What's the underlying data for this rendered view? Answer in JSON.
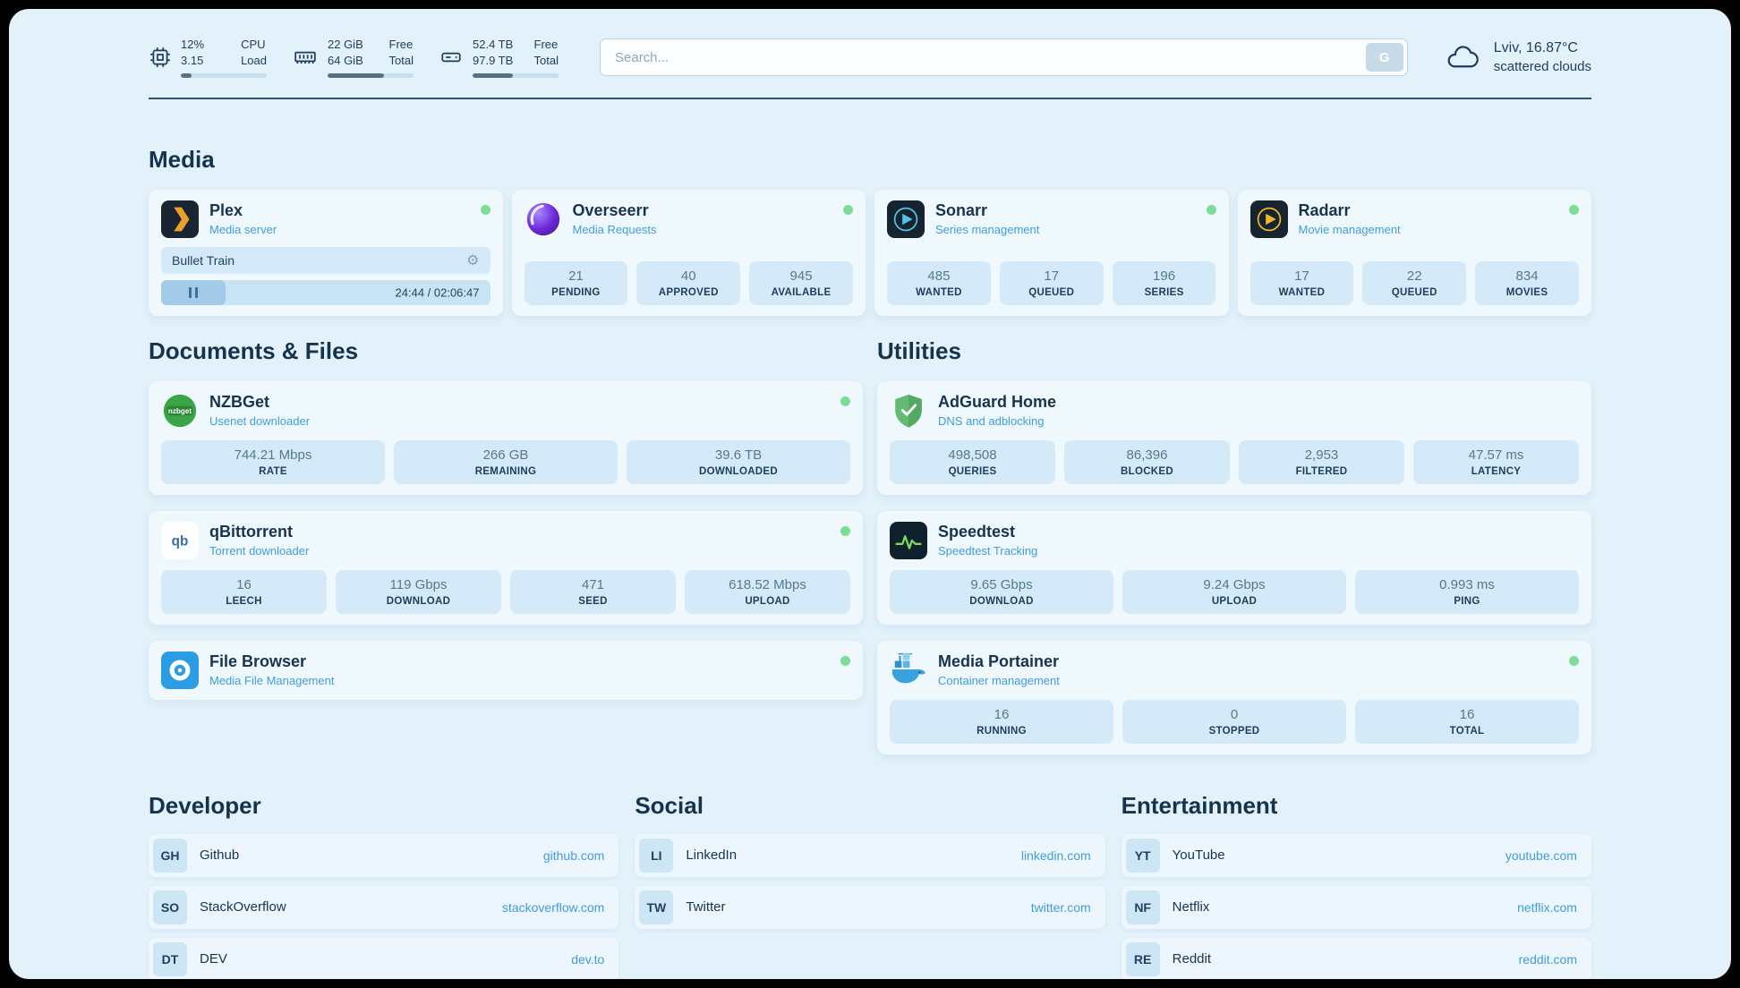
{
  "topbar": {
    "cpu": {
      "value1": "12%",
      "value2": "3.15",
      "label1": "CPU",
      "label2": "Load",
      "progress_pct": 12
    },
    "ram": {
      "value1": "22 GiB",
      "value2": "64 GiB",
      "label1": "Free",
      "label2": "Total",
      "progress_pct": 66
    },
    "disk": {
      "value1": "52.4 TB",
      "value2": "97.9 TB",
      "label1": "Free",
      "label2": "Total",
      "progress_pct": 47
    },
    "search": {
      "placeholder": "Search...",
      "button_label": "G"
    },
    "weather": {
      "location": "Lviv, 16.87°C",
      "condition": "scattered clouds"
    }
  },
  "media": {
    "title": "Media",
    "plex": {
      "name": "Plex",
      "subtitle": "Media server",
      "now_playing": "Bullet Train",
      "time": "24:44 / 02:06:47",
      "progress_pct": 19.5
    },
    "overseerr": {
      "name": "Overseerr",
      "subtitle": "Media Requests",
      "stats": [
        {
          "value": "21",
          "label": "PENDING"
        },
        {
          "value": "40",
          "label": "APPROVED"
        },
        {
          "value": "945",
          "label": "AVAILABLE"
        }
      ]
    },
    "sonarr": {
      "name": "Sonarr",
      "subtitle": "Series management",
      "stats": [
        {
          "value": "485",
          "label": "WANTED"
        },
        {
          "value": "17",
          "label": "QUEUED"
        },
        {
          "value": "196",
          "label": "SERIES"
        }
      ]
    },
    "radarr": {
      "name": "Radarr",
      "subtitle": "Movie management",
      "stats": [
        {
          "value": "17",
          "label": "WANTED"
        },
        {
          "value": "22",
          "label": "QUEUED"
        },
        {
          "value": "834",
          "label": "MOVIES"
        }
      ]
    }
  },
  "documents": {
    "title": "Documents & Files",
    "nzbget": {
      "name": "NZBGet",
      "subtitle": "Usenet downloader",
      "stats": [
        {
          "value": "744.21 Mbps",
          "label": "RATE"
        },
        {
          "value": "266 GB",
          "label": "REMAINING"
        },
        {
          "value": "39.6 TB",
          "label": "DOWNLOADED"
        }
      ]
    },
    "qbittorrent": {
      "name": "qBittorrent",
      "subtitle": "Torrent downloader",
      "stats": [
        {
          "value": "16",
          "label": "LEECH"
        },
        {
          "value": "119 Gbps",
          "label": "DOWNLOAD"
        },
        {
          "value": "471",
          "label": "SEED"
        },
        {
          "value": "618.52 Mbps",
          "label": "UPLOAD"
        }
      ]
    },
    "filebrowser": {
      "name": "File Browser",
      "subtitle": "Media File Management"
    }
  },
  "utilities": {
    "title": "Utilities",
    "adguard": {
      "name": "AdGuard Home",
      "subtitle": "DNS and adblocking",
      "stats": [
        {
          "value": "498,508",
          "label": "QUERIES"
        },
        {
          "value": "86,396",
          "label": "BLOCKED"
        },
        {
          "value": "2,953",
          "label": "FILTERED"
        },
        {
          "value": "47.57 ms",
          "label": "LATENCY"
        }
      ]
    },
    "speedtest": {
      "name": "Speedtest",
      "subtitle": "Speedtest Tracking",
      "stats": [
        {
          "value": "9.65 Gbps",
          "label": "DOWNLOAD"
        },
        {
          "value": "9.24 Gbps",
          "label": "UPLOAD"
        },
        {
          "value": "0.993 ms",
          "label": "PING"
        }
      ]
    },
    "portainer": {
      "name": "Media Portainer",
      "subtitle": "Container management",
      "stats": [
        {
          "value": "16",
          "label": "RUNNING"
        },
        {
          "value": "0",
          "label": "STOPPED"
        },
        {
          "value": "16",
          "label": "TOTAL"
        }
      ]
    }
  },
  "developer": {
    "title": "Developer",
    "links": [
      {
        "abbr": "GH",
        "name": "Github",
        "url": "github.com"
      },
      {
        "abbr": "SO",
        "name": "StackOverflow",
        "url": "stackoverflow.com"
      },
      {
        "abbr": "DT",
        "name": "DEV",
        "url": "dev.to"
      }
    ]
  },
  "social": {
    "title": "Social",
    "links": [
      {
        "abbr": "LI",
        "name": "LinkedIn",
        "url": "linkedin.com"
      },
      {
        "abbr": "TW",
        "name": "Twitter",
        "url": "twitter.com"
      }
    ]
  },
  "entertainment": {
    "title": "Entertainment",
    "links": [
      {
        "abbr": "YT",
        "name": "YouTube",
        "url": "youtube.com"
      },
      {
        "abbr": "NF",
        "name": "Netflix",
        "url": "netflix.com"
      },
      {
        "abbr": "RE",
        "name": "Reddit",
        "url": "reddit.com"
      }
    ]
  }
}
